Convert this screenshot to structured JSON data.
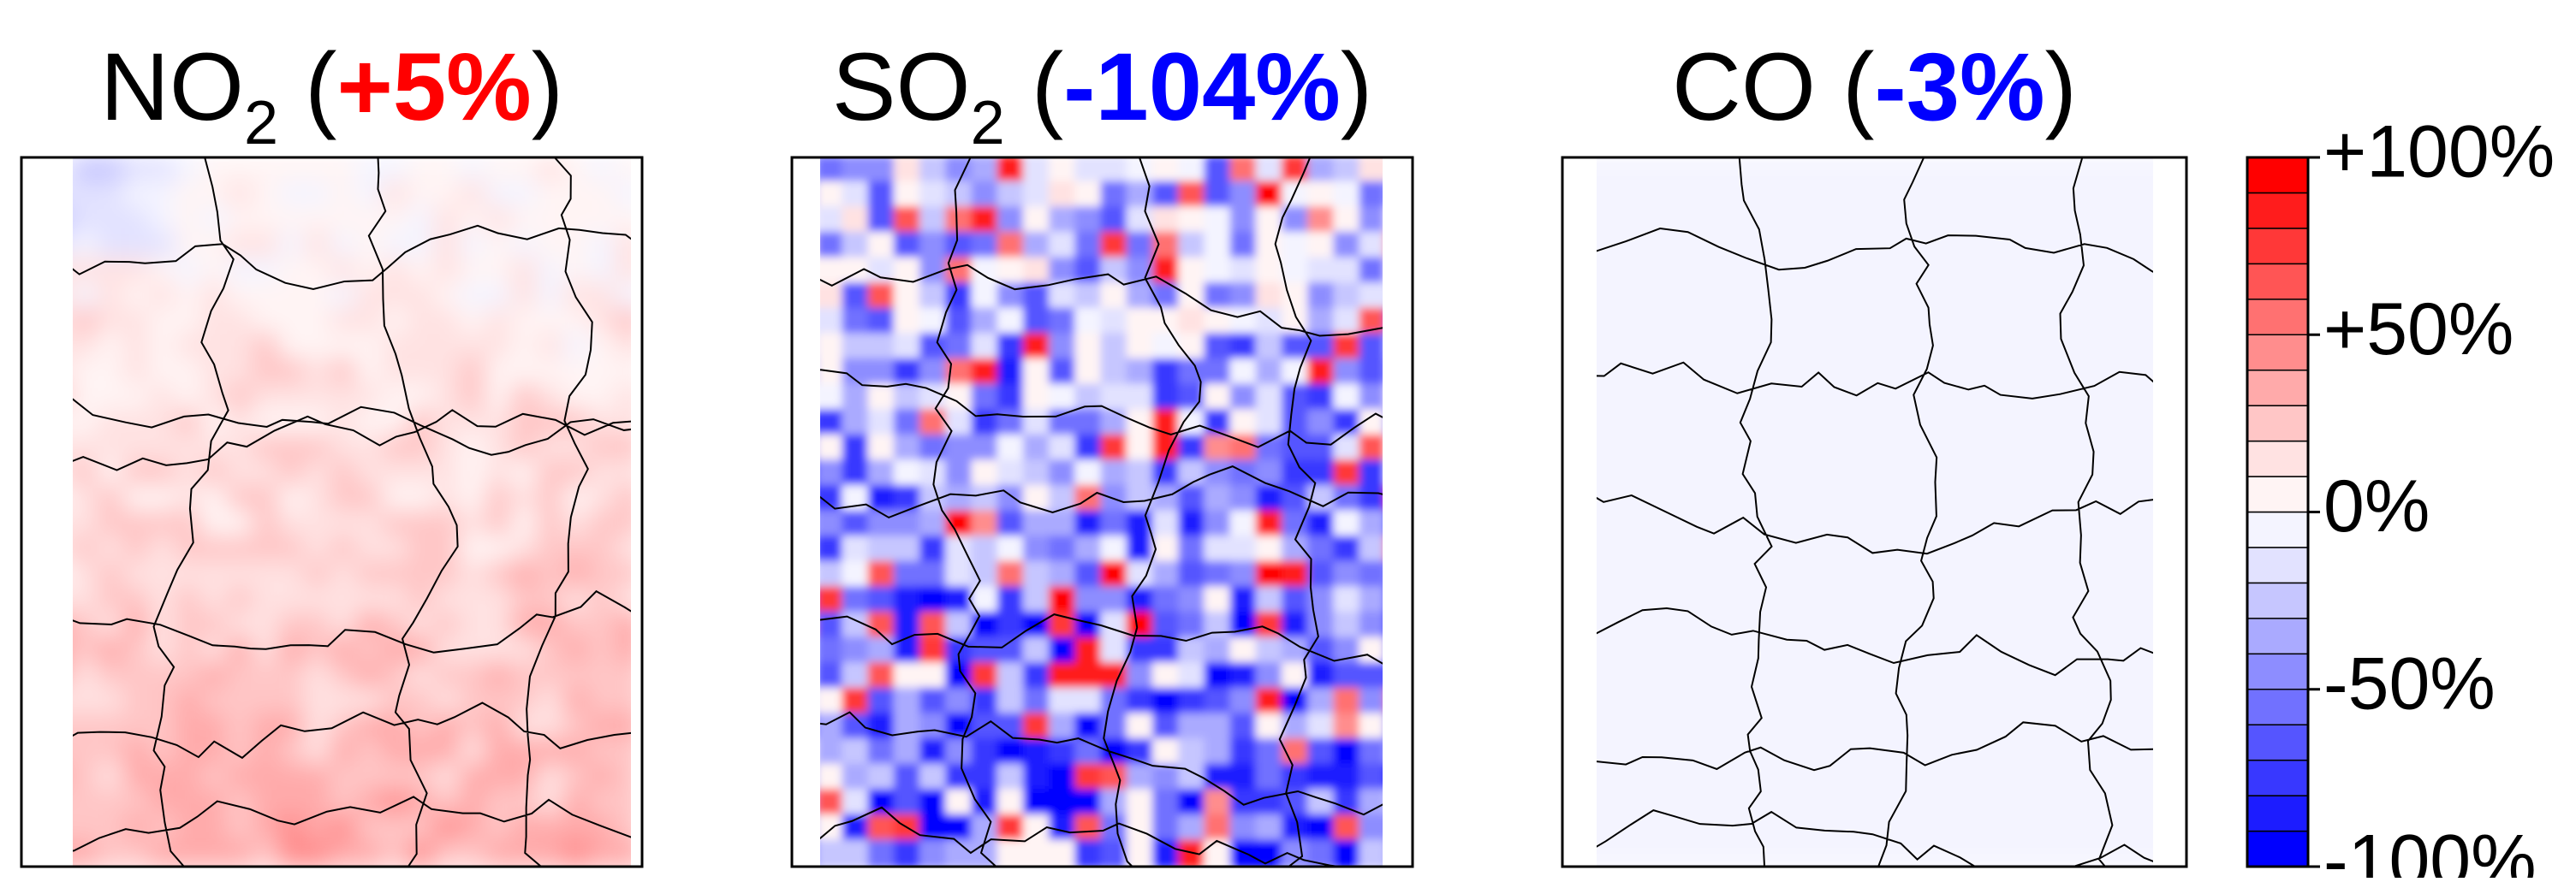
{
  "panels": [
    {
      "name": "NO",
      "subscript": "2",
      "open": " (",
      "change": "+5%",
      "close": ")",
      "change_color": "#ff0000"
    },
    {
      "name": "SO",
      "subscript": "2",
      "open": " (",
      "change": "-104%",
      "close": ")",
      "change_color": "#0000ff"
    },
    {
      "name": "CO",
      "subscript": "",
      "open": " (",
      "change": "-3%",
      "close": ")",
      "change_color": "#0000ff"
    }
  ],
  "colorbar": {
    "lim": [
      -100,
      100
    ],
    "colors": [
      "#0000ff",
      "#1c1cff",
      "#3838ff",
      "#5555ff",
      "#7171ff",
      "#8d8dff",
      "#aaaaff",
      "#c6c6ff",
      "#e2e2ff",
      "#f4f4ff",
      "#fff4f4",
      "#ffe2e2",
      "#ffc6c6",
      "#ffaaaa",
      "#ff8d8d",
      "#ff7171",
      "#ff5555",
      "#ff3838",
      "#ff1c1c",
      "#ff0000"
    ],
    "ticks": [
      {
        "value": 100,
        "label": "+100%"
      },
      {
        "value": 50,
        "label": "+50%"
      },
      {
        "value": 0,
        "label": "0%"
      },
      {
        "value": -50,
        "label": "-50%"
      },
      {
        "value": -100,
        "label": "-100%"
      }
    ]
  }
}
